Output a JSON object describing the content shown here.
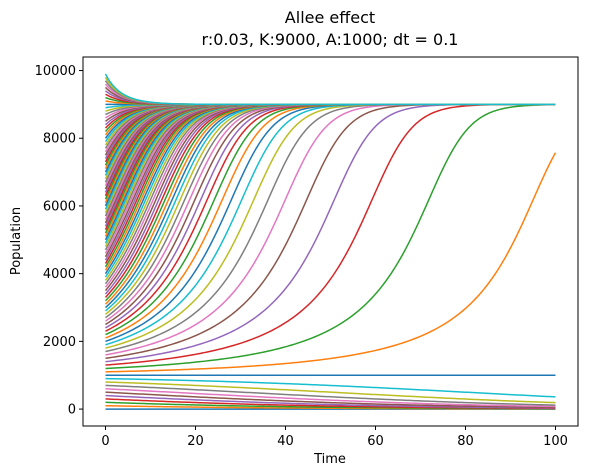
{
  "chart_data": {
    "type": "line",
    "title": "Allee effect",
    "subtitle": "r:0.03, K:9000, A:1000; dt = 0.1",
    "xlabel": "Time",
    "ylabel": "Population",
    "xlim": [
      -5,
      105
    ],
    "ylim": [
      -500,
      10400
    ],
    "xticks": [
      0,
      20,
      40,
      60,
      80,
      100
    ],
    "xtick_labels": [
      "0",
      "20",
      "40",
      "60",
      "80",
      "100"
    ],
    "yticks": [
      0,
      2000,
      4000,
      6000,
      8000,
      10000
    ],
    "ytick_labels": [
      "0",
      "2000",
      "4000",
      "6000",
      "8000",
      "10000"
    ],
    "grid": false,
    "legend": false,
    "model": {
      "r": 0.03,
      "K": 9000,
      "A": 1000,
      "dt": 0.1,
      "t_start": 0,
      "t_end": 100
    },
    "initial_populations": [
      0,
      100,
      200,
      300,
      400,
      500,
      600,
      700,
      800,
      900,
      1000,
      1100,
      1200,
      1300,
      1400,
      1500,
      1600,
      1700,
      1800,
      1900,
      2000,
      2100,
      2200,
      2300,
      2400,
      2500,
      2600,
      2700,
      2800,
      2900,
      3000,
      3100,
      3200,
      3300,
      3400,
      3500,
      3600,
      3700,
      3800,
      3900,
      4000,
      4100,
      4200,
      4300,
      4400,
      4500,
      4600,
      4700,
      4800,
      4900,
      5000,
      5100,
      5200,
      5300,
      5400,
      5500,
      5600,
      5700,
      5800,
      5900,
      6000,
      6100,
      6200,
      6300,
      6400,
      6500,
      6600,
      6700,
      6800,
      6900,
      7000,
      7100,
      7200,
      7300,
      7400,
      7500,
      7600,
      7700,
      7800,
      7900,
      8000,
      8100,
      8200,
      8300,
      8400,
      8500,
      8600,
      8700,
      8800,
      8900,
      9000,
      9100,
      9200,
      9300,
      9400,
      9500,
      9600,
      9700,
      9800,
      9900
    ],
    "color_cycle": [
      "#1f77b4",
      "#ff7f0e",
      "#2ca02c",
      "#d62728",
      "#9467bd",
      "#8c564b",
      "#e377c2",
      "#7f7f7f",
      "#bcbd22",
      "#17becf"
    ]
  }
}
